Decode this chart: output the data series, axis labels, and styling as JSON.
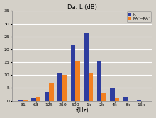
{
  "title": "Da. L (dB)",
  "xlabel": "f(Hz)",
  "categories": [
    "31",
    "63",
    "125",
    "250",
    "500",
    "1k",
    "2k",
    "4k",
    "8k",
    "16k"
  ],
  "series_R": [
    0.5,
    1.2,
    3.5,
    10.5,
    22.0,
    26.5,
    15.5,
    5.0,
    1.5,
    0.5
  ],
  "series_RA": [
    0.2,
    1.5,
    7.0,
    10.0,
    15.5,
    10.5,
    3.0,
    1.0,
    0.0,
    0.0
  ],
  "color_R": "#2E3D9E",
  "color_RA": "#F28020",
  "legend_R": "R",
  "legend_RA": "RA˜=RA˜",
  "ylim": [
    0,
    35
  ],
  "yticks": [
    0,
    5,
    10,
    15,
    20,
    25,
    30,
    35
  ],
  "bg_color": "#D4D0C8",
  "grid_color": "#FFFFFF"
}
